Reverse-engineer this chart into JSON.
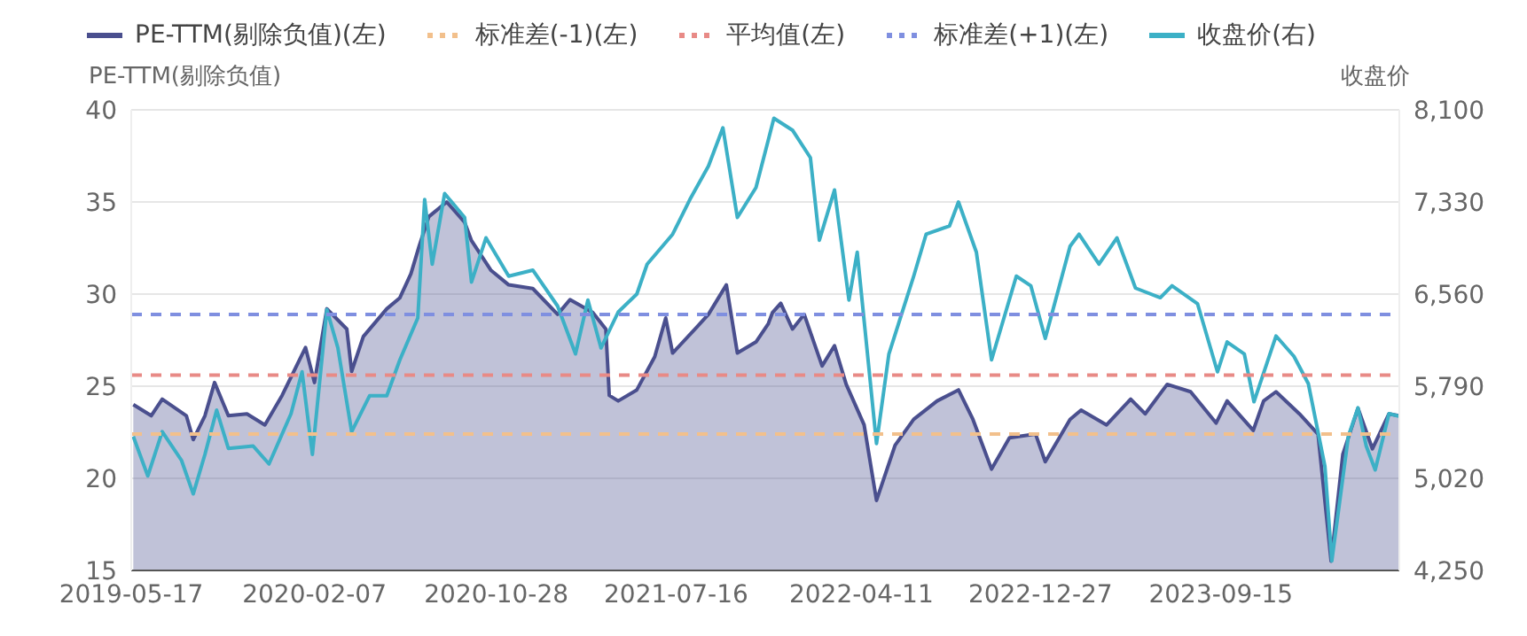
{
  "chart_data": {
    "type": "line",
    "ylabel": "PE-TTM(剔除负值)",
    "y2label": "收盘价",
    "xlim": [
      "2019-05-17",
      "2024-05-31"
    ],
    "xticks": [
      "2019-05-17",
      "2020-02-07",
      "2020-10-28",
      "2021-07-16",
      "2022-04-11",
      "2022-12-27",
      "2023-09-15"
    ],
    "ylim": [
      15,
      40
    ],
    "yticks": [
      15,
      20,
      25,
      30,
      35,
      40
    ],
    "y2lim": [
      4250,
      8100
    ],
    "y2ticks": [
      {
        "value": 4250,
        "label": "4,250"
      },
      {
        "value": 5020,
        "label": "5,020"
      },
      {
        "value": 5790,
        "label": "5,790"
      },
      {
        "value": 6560,
        "label": "6,560"
      },
      {
        "value": 7330,
        "label": "7,330"
      },
      {
        "value": 8100,
        "label": "8,100"
      }
    ],
    "grid": "y",
    "legend": "top",
    "marker": "none",
    "ref_lines": [
      {
        "axis": "y",
        "value": 22.4,
        "label": "标准差(-1)(左)",
        "color": "#f2c08c",
        "line_style": "dashed"
      },
      {
        "axis": "y",
        "value": 25.6,
        "label": "平均值(左)",
        "color": "#e88a86",
        "line_style": "dashed"
      },
      {
        "axis": "y",
        "value": 28.9,
        "label": "标准差(+1)(左)",
        "color": "#7f8fe0",
        "line_style": "dashed"
      }
    ],
    "series": [
      {
        "name": "PE-TTM(剔除负值)(左)",
        "type": "area",
        "color": "#4a4f8e",
        "x": [
          "2019-05-20",
          "2019-06-15",
          "2019-07-01",
          "2019-08-05",
          "2019-08-15",
          "2019-09-01",
          "2019-09-15",
          "2019-10-05",
          "2019-11-01",
          "2019-11-27",
          "2019-12-22",
          "2020-01-25",
          "2020-02-07",
          "2020-02-25",
          "2020-03-25",
          "2020-04-01",
          "2020-04-18",
          "2020-05-22",
          "2020-06-10",
          "2020-06-26",
          "2020-07-08",
          "2020-07-22",
          "2020-08-17",
          "2020-09-12",
          "2020-09-22",
          "2020-10-20",
          "2020-11-15",
          "2020-12-20",
          "2021-01-25",
          "2021-02-12",
          "2021-03-17",
          "2021-04-05",
          "2021-04-10",
          "2021-04-23",
          "2021-05-20",
          "2021-06-15",
          "2021-07-01",
          "2021-07-11",
          "2021-08-15",
          "2021-09-01",
          "2021-09-27",
          "2021-10-13",
          "2021-11-09",
          "2021-11-27",
          "2021-12-03",
          "2021-12-15",
          "2022-01-01",
          "2022-01-18",
          "2022-02-13",
          "2022-03-03",
          "2022-03-20",
          "2022-04-15",
          "2022-05-03",
          "2022-05-30",
          "2022-06-26",
          "2022-07-30",
          "2022-08-30",
          "2022-09-20",
          "2022-10-17",
          "2022-11-12",
          "2022-12-20",
          "2023-01-03",
          "2023-02-08",
          "2023-02-24",
          "2023-04-02",
          "2023-05-07",
          "2023-05-28",
          "2023-06-29",
          "2023-08-02",
          "2023-09-08",
          "2023-09-24",
          "2023-11-01",
          "2023-11-16",
          "2023-12-04",
          "2024-01-07",
          "2024-02-03",
          "2024-02-22",
          "2024-03-10",
          "2024-04-01",
          "2024-04-22",
          "2024-05-16",
          "2024-05-30"
        ],
        "values": [
          24.0,
          23.4,
          24.3,
          23.4,
          22.1,
          23.4,
          25.2,
          23.4,
          23.5,
          22.9,
          24.5,
          27.1,
          25.2,
          29.2,
          28.1,
          25.8,
          27.7,
          29.2,
          29.8,
          31.1,
          32.6,
          34.2,
          35.0,
          33.9,
          32.9,
          31.3,
          30.5,
          30.3,
          28.9,
          29.7,
          29.0,
          28.1,
          24.5,
          24.2,
          24.8,
          26.6,
          28.7,
          26.8,
          28.2,
          28.9,
          30.5,
          26.8,
          27.4,
          28.4,
          29.0,
          29.5,
          28.1,
          28.9,
          26.1,
          27.2,
          25.1,
          22.9,
          18.8,
          21.8,
          23.2,
          24.2,
          24.8,
          23.2,
          20.5,
          22.2,
          22.4,
          20.9,
          23.2,
          23.7,
          22.9,
          24.3,
          23.5,
          25.1,
          24.7,
          23.0,
          24.2,
          22.6,
          24.2,
          24.7,
          23.5,
          22.4,
          15.5,
          21.3,
          23.8,
          21.6,
          23.5,
          23.4
        ]
      },
      {
        "name": "收盘价(右)",
        "type": "line",
        "axis": "y2",
        "color": "#3cb0c6",
        "x": [
          "2019-05-20",
          "2019-06-10",
          "2019-07-01",
          "2019-07-29",
          "2019-08-15",
          "2019-09-01",
          "2019-09-18",
          "2019-10-05",
          "2019-11-10",
          "2019-12-03",
          "2020-01-04",
          "2020-01-20",
          "2020-02-04",
          "2020-02-25",
          "2020-03-12",
          "2020-04-01",
          "2020-04-27",
          "2020-05-22",
          "2020-06-10",
          "2020-07-06",
          "2020-07-16",
          "2020-07-27",
          "2020-08-14",
          "2020-09-12",
          "2020-09-22",
          "2020-10-13",
          "2020-11-15",
          "2020-12-20",
          "2021-01-25",
          "2021-02-20",
          "2021-03-10",
          "2021-03-29",
          "2021-04-23",
          "2021-05-20",
          "2021-06-04",
          "2021-07-11",
          "2021-08-05",
          "2021-09-01",
          "2021-09-22",
          "2021-10-13",
          "2021-11-09",
          "2021-11-27",
          "2021-12-05",
          "2022-01-01",
          "2022-01-27",
          "2022-02-09",
          "2022-03-03",
          "2022-03-24",
          "2022-04-05",
          "2022-05-03",
          "2022-05-21",
          "2022-06-26",
          "2022-07-14",
          "2022-08-17",
          "2022-08-30",
          "2022-09-25",
          "2022-10-17",
          "2022-11-22",
          "2022-12-13",
          "2023-01-03",
          "2023-02-08",
          "2023-02-21",
          "2023-03-22",
          "2023-04-17",
          "2023-05-14",
          "2023-06-19",
          "2023-07-06",
          "2023-08-12",
          "2023-09-10",
          "2023-09-24",
          "2023-10-19",
          "2023-11-02",
          "2023-12-04",
          "2023-12-30",
          "2024-01-20",
          "2024-02-13",
          "2024-02-23",
          "2024-03-18",
          "2024-04-01",
          "2024-04-13",
          "2024-04-26",
          "2024-05-16",
          "2024-05-30"
        ],
        "values": [
          5370,
          5040,
          5410,
          5170,
          4890,
          5220,
          5590,
          5270,
          5290,
          5140,
          5560,
          5910,
          5220,
          6430,
          6110,
          5410,
          5710,
          5710,
          6010,
          6360,
          7350,
          6810,
          7400,
          7200,
          6660,
          7030,
          6710,
          6760,
          6460,
          6060,
          6510,
          6110,
          6410,
          6560,
          6810,
          7060,
          7350,
          7630,
          7950,
          7200,
          7450,
          7850,
          8030,
          7930,
          7700,
          7010,
          7430,
          6510,
          6910,
          5310,
          6060,
          6710,
          7060,
          7130,
          7330,
          6910,
          6010,
          6710,
          6630,
          6190,
          6960,
          7060,
          6810,
          7030,
          6610,
          6530,
          6630,
          6480,
          5910,
          6160,
          6060,
          5660,
          6210,
          6040,
          5810,
          5120,
          4330,
          5370,
          5610,
          5290,
          5090,
          5560,
          5540
        ]
      }
    ]
  }
}
